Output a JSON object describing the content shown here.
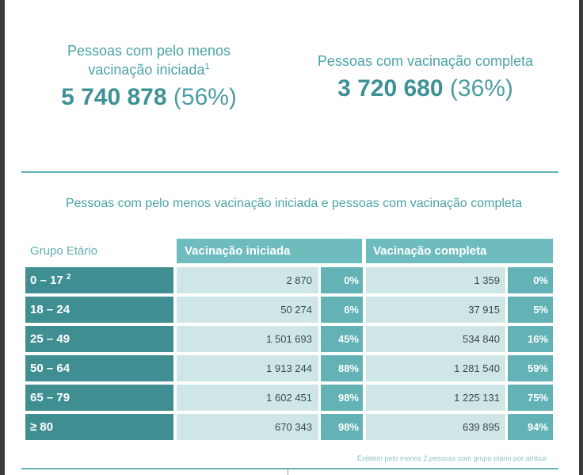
{
  "kpis": {
    "initiated": {
      "label_line1": "Pessoas com pelo menos",
      "label_line2": "vacinação iniciada",
      "label_sup": "1",
      "number": "5 740 878",
      "percent": "(56%)"
    },
    "complete": {
      "label": "Pessoas com vacinação completa",
      "number": "3 720 680",
      "percent": "(36%)"
    }
  },
  "section": {
    "title": "Pessoas com pelo menos vacinação iniciada e pessoas com vacinação completa"
  },
  "table": {
    "headers": {
      "age_group": "Grupo Etário",
      "initiated": "Vacinação iniciada",
      "complete": "Vacinação completa"
    },
    "rows": [
      {
        "age": "0 – 17",
        "age_sup": "2",
        "initiated": "2 870",
        "initiated_pct": "0%",
        "complete": "1 359",
        "complete_pct": "0%"
      },
      {
        "age": "18 – 24",
        "age_sup": "",
        "initiated": "50 274",
        "initiated_pct": "6%",
        "complete": "37 915",
        "complete_pct": "5%"
      },
      {
        "age": "25 – 49",
        "age_sup": "",
        "initiated": "1 501 693",
        "initiated_pct": "45%",
        "complete": "534 840",
        "complete_pct": "16%"
      },
      {
        "age": "50 – 64",
        "age_sup": "",
        "initiated": "1 913 244",
        "initiated_pct": "88%",
        "complete": "1 281 540",
        "complete_pct": "59%"
      },
      {
        "age": "65 – 79",
        "age_sup": "",
        "initiated": "1 602 451",
        "initiated_pct": "98%",
        "complete": "1 225 131",
        "complete_pct": "75%"
      },
      {
        "age": "≥ 80",
        "age_sup": "",
        "initiated": "670 343",
        "initiated_pct": "98%",
        "complete": "639 895",
        "complete_pct": "94%"
      }
    ]
  },
  "footnote": "Existem pelo menos 2 pessoas com grupo etário por atribuir",
  "colors": {
    "accent": "#4aa3a6",
    "header_fill": "#6fbcbf",
    "age_fill": "#3f8f92",
    "value_fill": "#cfe6e7",
    "percent_fill": "#62b2b6"
  }
}
